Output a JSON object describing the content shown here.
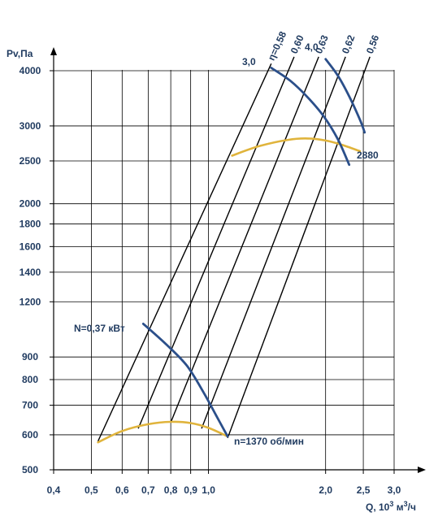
{
  "chart_data": {
    "type": "line",
    "title": "",
    "xlabel_parts": {
      "pre": "Q, 10",
      "sup1": "3",
      "mid": " м",
      "sup2": "3",
      "post": "/ч"
    },
    "ylabel": "Pv,Па",
    "x_scale": "log",
    "y_scale": "log",
    "xlim": [
      0.4,
      3.3
    ],
    "ylim": [
      500,
      4500
    ],
    "grid": true,
    "x_ticks": [
      {
        "value": 0.4,
        "label": "0,4"
      },
      {
        "value": 0.5,
        "label": "0,5"
      },
      {
        "value": 0.6,
        "label": "0,6"
      },
      {
        "value": 0.7,
        "label": "0,7"
      },
      {
        "value": 0.8,
        "label": "0,8"
      },
      {
        "value": 0.9,
        "label": "0,9"
      },
      {
        "value": 1.0,
        "label": "1,0"
      },
      {
        "value": 2.0,
        "label": "2,0"
      },
      {
        "value": 2.5,
        "label": "2,5"
      },
      {
        "value": 3.0,
        "label": "3,0"
      }
    ],
    "y_ticks": [
      {
        "value": 500,
        "label": "500"
      },
      {
        "value": 600,
        "label": "600"
      },
      {
        "value": 700,
        "label": "700"
      },
      {
        "value": 800,
        "label": "800"
      },
      {
        "value": 900,
        "label": "900"
      },
      {
        "value": 1200,
        "label": "1200"
      },
      {
        "value": 1400,
        "label": "1400"
      },
      {
        "value": 1600,
        "label": "1600"
      },
      {
        "value": 1800,
        "label": "1800"
      },
      {
        "value": 2000,
        "label": "2000"
      },
      {
        "value": 2500,
        "label": "2500"
      },
      {
        "value": 3000,
        "label": "3000"
      },
      {
        "value": 4000,
        "label": "4000"
      }
    ],
    "efficiency_lines": [
      {
        "label": "η=0,58",
        "points": [
          [
            0.52,
            580
          ],
          [
            1.45,
            4150
          ]
        ]
      },
      {
        "label": "0,60",
        "points": [
          [
            0.66,
            620
          ],
          [
            1.66,
            4300
          ]
        ]
      },
      {
        "label": "0,63",
        "points": [
          [
            0.8,
            640
          ],
          [
            1.92,
            4300
          ]
        ]
      },
      {
        "label": "0,62",
        "points": [
          [
            0.96,
            620
          ],
          [
            2.25,
            4300
          ]
        ]
      },
      {
        "label": "0,56",
        "points": [
          [
            1.12,
            590
          ],
          [
            2.6,
            4300
          ]
        ]
      }
    ],
    "pressure_curves": [
      {
        "name": "n=1370 об/мин",
        "points": [
          [
            0.52,
            577
          ],
          [
            0.6,
            612
          ],
          [
            0.7,
            634
          ],
          [
            0.8,
            642
          ],
          [
            0.9,
            638
          ],
          [
            1.0,
            622
          ],
          [
            1.12,
            595
          ]
        ]
      },
      {
        "name": "2880",
        "points": [
          [
            1.15,
            2570
          ],
          [
            1.35,
            2700
          ],
          [
            1.6,
            2790
          ],
          [
            1.8,
            2810
          ],
          [
            2.0,
            2780
          ],
          [
            2.2,
            2720
          ],
          [
            2.45,
            2630
          ]
        ]
      }
    ],
    "power_curves": [
      {
        "name": "N=0,37 кВт",
        "points": [
          [
            0.68,
            1070
          ],
          [
            0.78,
            960
          ],
          [
            0.88,
            860
          ],
          [
            0.97,
            750
          ],
          [
            1.05,
            660
          ],
          [
            1.12,
            595
          ]
        ]
      },
      {
        "name": "3,0",
        "points": [
          [
            1.45,
            4060
          ],
          [
            1.62,
            3800
          ],
          [
            1.8,
            3480
          ],
          [
            1.98,
            3150
          ],
          [
            2.15,
            2800
          ],
          [
            2.3,
            2450
          ]
        ]
      },
      {
        "name": "4,0",
        "points": [
          [
            2.0,
            4250
          ],
          [
            2.15,
            3900
          ],
          [
            2.3,
            3500
          ],
          [
            2.45,
            3100
          ],
          [
            2.52,
            2900
          ]
        ]
      }
    ],
    "annotations": {
      "n_low": "n=1370 об/мин",
      "n_high": "2880",
      "power_low": "N=0,37 кВт",
      "power_3": "3,0",
      "power_4": "4,0"
    },
    "colors": {
      "text": "#1f3a5f",
      "grid": "#000000",
      "pressure_curve": "#e0b43c",
      "power_curve": "#2b4f8a"
    }
  }
}
